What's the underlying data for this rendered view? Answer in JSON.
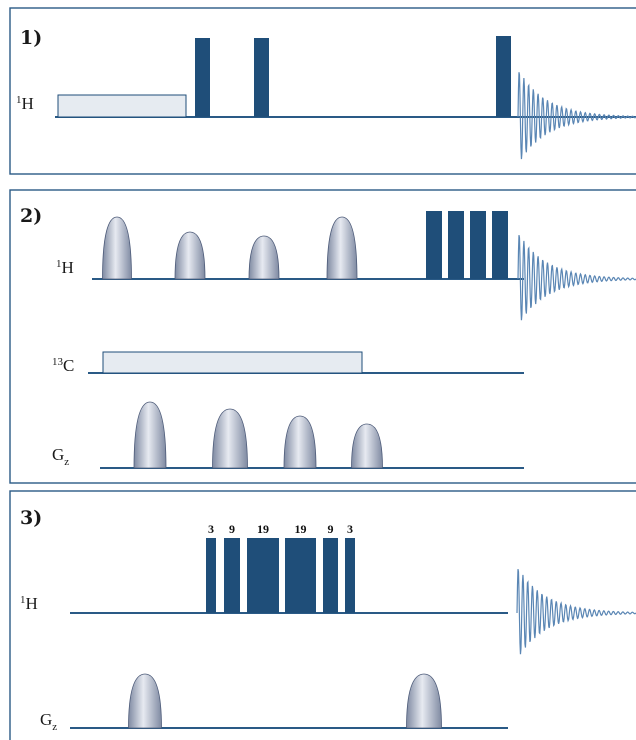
{
  "colors": {
    "pulse": "#1f4e79",
    "line": "#2a5a86",
    "frame": "#2a5a86",
    "box_fill": "#e6ebf1",
    "box_stroke": "#1f4e79",
    "shaped_light": "#e7eaf1",
    "shaped_dark": "#7f8aa2",
    "fid": "#5a86b4"
  },
  "panels": [
    {
      "label": "1)",
      "channels": [
        {
          "nucleus_sup": "1",
          "nucleus_base": "H",
          "nucleus_sub": "",
          "elements": [
            {
              "kind": "box"
            },
            {
              "kind": "hard-pulse"
            },
            {
              "kind": "hard-pulse"
            },
            {
              "kind": "hard-pulse"
            },
            {
              "kind": "fid"
            }
          ]
        }
      ]
    },
    {
      "label": "2)",
      "channels": [
        {
          "nucleus_sup": "1",
          "nucleus_base": "H",
          "nucleus_sub": "",
          "elements": [
            {
              "kind": "shaped-pulse"
            },
            {
              "kind": "shaped-pulse"
            },
            {
              "kind": "shaped-pulse"
            },
            {
              "kind": "shaped-pulse"
            },
            {
              "kind": "hard-pulse"
            },
            {
              "kind": "hard-pulse"
            },
            {
              "kind": "hard-pulse"
            },
            {
              "kind": "hard-pulse"
            },
            {
              "kind": "fid"
            }
          ]
        },
        {
          "nucleus_sup": "13",
          "nucleus_base": "C",
          "nucleus_sub": "",
          "elements": [
            {
              "kind": "box"
            }
          ]
        },
        {
          "nucleus_sup": "",
          "nucleus_base": "G",
          "nucleus_sub": "z",
          "elements": [
            {
              "kind": "gradient"
            },
            {
              "kind": "gradient"
            },
            {
              "kind": "gradient"
            },
            {
              "kind": "gradient"
            }
          ]
        }
      ]
    },
    {
      "label": "3)",
      "channels": [
        {
          "nucleus_sup": "1",
          "nucleus_base": "H",
          "nucleus_sub": "",
          "elements": [
            {
              "kind": "hard-pulse",
              "label": "3"
            },
            {
              "kind": "hard-pulse",
              "label": "9"
            },
            {
              "kind": "hard-pulse",
              "label": "19"
            },
            {
              "kind": "hard-pulse",
              "label": "19"
            },
            {
              "kind": "hard-pulse",
              "label": "9"
            },
            {
              "kind": "hard-pulse",
              "label": "3"
            },
            {
              "kind": "fid"
            }
          ]
        },
        {
          "nucleus_sup": "",
          "nucleus_base": "G",
          "nucleus_sub": "z",
          "elements": [
            {
              "kind": "gradient"
            },
            {
              "kind": "gradient"
            }
          ]
        }
      ]
    }
  ]
}
